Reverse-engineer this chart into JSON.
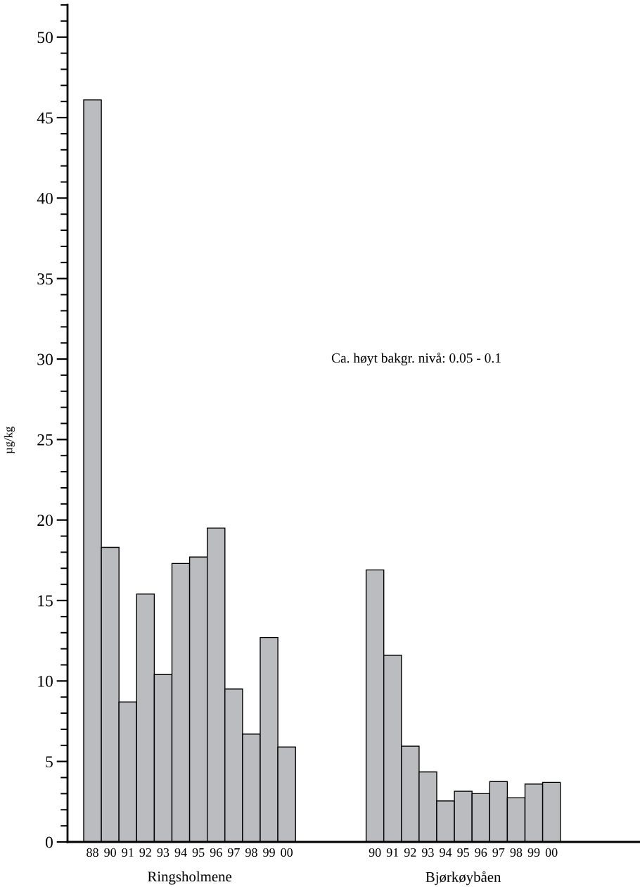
{
  "chart_data": {
    "type": "bar",
    "ylabel": "µg/kg",
    "categories": [
      "88",
      "90",
      "91",
      "92",
      "93",
      "94",
      "95",
      "96",
      "97",
      "98",
      "99",
      "00",
      null,
      null,
      null,
      null,
      "90",
      "91",
      "92",
      "93",
      "94",
      "95",
      "96",
      "97",
      "98",
      "99",
      "00"
    ],
    "color": "#bbbcc0",
    "values": [
      46.1,
      18.3,
      8.7,
      15.4,
      10.4,
      17.3,
      17.7,
      19.5,
      9.5,
      6.7,
      12.7,
      5.9,
      null,
      null,
      null,
      null,
      16.9,
      11.6,
      5.95,
      4.35,
      2.55,
      3.15,
      3.0,
      3.75,
      2.75,
      3.6,
      3.7
    ],
    "ylim": [
      0,
      52
    ],
    "yticks": [
      0,
      5,
      10,
      15,
      20,
      25,
      30,
      35,
      40,
      45,
      50
    ],
    "grid": false,
    "annotations": [
      "Ringsholmene",
      "Bjørkøybåen",
      "Ca. høyt bakgr. nivå: 0.05 - 0.1"
    ]
  }
}
